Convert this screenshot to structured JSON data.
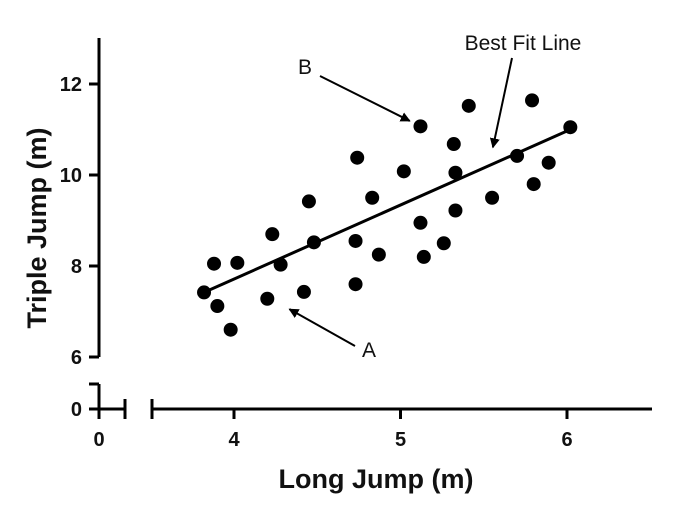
{
  "chart_data": {
    "type": "scatter",
    "xlabel": "Long Jump (m)",
    "ylabel": "Triple Jump (m)",
    "x_ticks": [
      0,
      4,
      5,
      6
    ],
    "y_ticks_upper": [
      6,
      8,
      10,
      12
    ],
    "y_ticks_lower": [
      0
    ],
    "xlim_main": [
      3.4,
      6.5
    ],
    "ylim_main": [
      6,
      13
    ],
    "axis_breaks": [
      "x",
      "y"
    ],
    "grid": false,
    "points": [
      {
        "x": 3.82,
        "y": 7.42
      },
      {
        "x": 3.88,
        "y": 8.05
      },
      {
        "x": 3.9,
        "y": 7.12
      },
      {
        "x": 3.98,
        "y": 6.6
      },
      {
        "x": 4.02,
        "y": 8.07
      },
      {
        "x": 4.2,
        "y": 7.28
      },
      {
        "x": 4.23,
        "y": 8.7
      },
      {
        "x": 4.28,
        "y": 8.03
      },
      {
        "x": 4.42,
        "y": 7.43
      },
      {
        "x": 4.45,
        "y": 9.42
      },
      {
        "x": 4.48,
        "y": 8.52
      },
      {
        "x": 4.73,
        "y": 7.6
      },
      {
        "x": 4.73,
        "y": 8.55
      },
      {
        "x": 4.74,
        "y": 10.38
      },
      {
        "x": 4.83,
        "y": 9.5
      },
      {
        "x": 4.87,
        "y": 8.25
      },
      {
        "x": 5.02,
        "y": 10.08
      },
      {
        "x": 5.12,
        "y": 11.07
      },
      {
        "x": 5.12,
        "y": 8.95
      },
      {
        "x": 5.14,
        "y": 8.2
      },
      {
        "x": 5.26,
        "y": 8.5
      },
      {
        "x": 5.32,
        "y": 10.68
      },
      {
        "x": 5.33,
        "y": 9.22
      },
      {
        "x": 5.33,
        "y": 10.05
      },
      {
        "x": 5.41,
        "y": 11.52
      },
      {
        "x": 5.55,
        "y": 9.5
      },
      {
        "x": 5.7,
        "y": 10.42
      },
      {
        "x": 5.79,
        "y": 11.64
      },
      {
        "x": 5.8,
        "y": 9.8
      },
      {
        "x": 5.89,
        "y": 10.27
      },
      {
        "x": 6.02,
        "y": 11.05
      }
    ],
    "best_fit_line": {
      "x": [
        3.82,
        6.02
      ],
      "y": [
        7.42,
        11.0
      ]
    },
    "annotations": [
      {
        "text": "Best Fit Line",
        "target": {
          "x": 5.54,
          "y": 10.35
        }
      },
      {
        "text": "B",
        "target": {
          "x": 5.12,
          "y": 11.07
        }
      },
      {
        "text": "A",
        "target": {
          "x": 4.27,
          "y": 7.18
        }
      }
    ]
  }
}
